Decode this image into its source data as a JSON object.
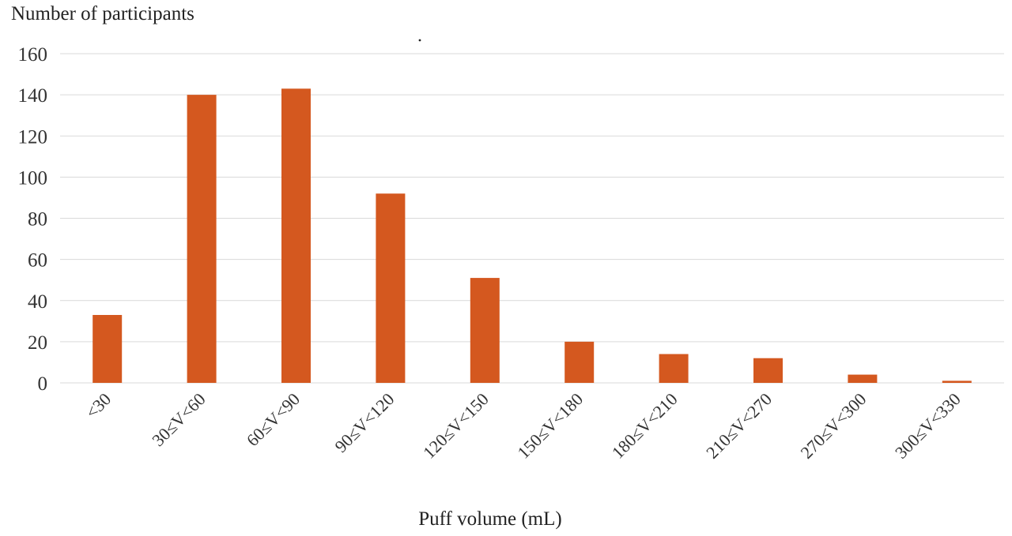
{
  "chart_data": {
    "type": "bar",
    "title": "",
    "ylabel": "Number of participants",
    "xlabel": "Puff volume (mL)",
    "categories": [
      "<30",
      "30≤V<60",
      "60≤V<90",
      "90≤V<120",
      "120≤V<150",
      "150≤V<180",
      "180≤V<210",
      "210≤V<270",
      "270≤V<300",
      "300≤V<330"
    ],
    "values": [
      33,
      140,
      143,
      92,
      51,
      20,
      14,
      12,
      4,
      1
    ],
    "ylim": [
      0,
      160
    ],
    "yticks": [
      0,
      20,
      40,
      60,
      80,
      100,
      120,
      140,
      160
    ],
    "grid": true,
    "legend": "none",
    "bar_color": "#d4581f",
    "grid_color": "#d9d9d9"
  }
}
